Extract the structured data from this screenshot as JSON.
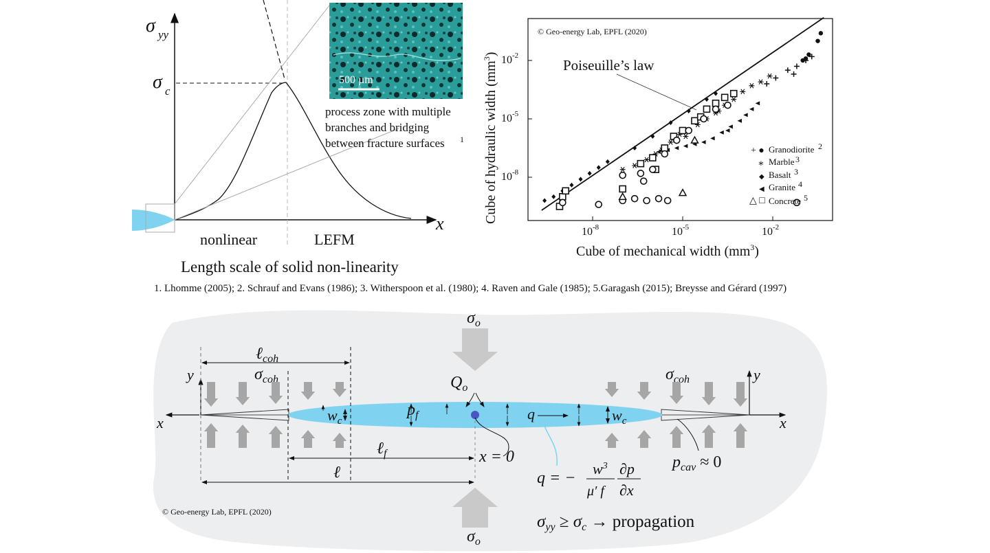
{
  "panel_a": {
    "y_symbol": "σ",
    "y_sub": "yy",
    "c_symbol": "σ",
    "c_sub": "c",
    "x_symbol": "x",
    "label_nonlinear": "nonlinear",
    "label_lefm": "LEFM",
    "caption": "Length scale of solid non-linearity",
    "scale_bar": "500 µm",
    "process_zone_line1": "process zone with multiple",
    "process_zone_line2": "branches and bridging",
    "process_zone_line3": "between fracture surfaces",
    "process_zone_ref": "1"
  },
  "chart": {
    "copyright": "© Geo-energy Lab, EPFL (2020)",
    "annotation": "Poiseuille’s law",
    "ylabel": "Cube of hydraulic width (mm",
    "ylabel_sup": "3",
    "ylabel_end": ")",
    "xlabel": "Cube of mechanical width (mm",
    "xlabel_sup": "3",
    "xlabel_end": ")",
    "yticks": [
      {
        "base": "10",
        "exp": "-2"
      },
      {
        "base": "10",
        "exp": "-5"
      },
      {
        "base": "10",
        "exp": "-8"
      }
    ],
    "xticks": [
      {
        "base": "10",
        "exp": "-8"
      },
      {
        "base": "10",
        "exp": "-5"
      },
      {
        "base": "10",
        "exp": "-2"
      }
    ],
    "legend": [
      {
        "marker": "+ ●",
        "name": "Granodiorite",
        "ref": "2"
      },
      {
        "marker": "∗",
        "name": "Marble",
        "ref": "3"
      },
      {
        "marker": "◆",
        "name": "Basalt",
        "ref": "3"
      },
      {
        "marker": "◀",
        "name": "Granite",
        "ref": "4"
      },
      {
        "marker": "△ □",
        "name": "Concrete",
        "ref": "5"
      }
    ]
  },
  "chart_data": {
    "type": "scatter",
    "log_scale": true,
    "xlim_exp": [
      -10.3,
      -0.2
    ],
    "ylim_exp": [
      -9.7,
      0.3
    ],
    "poiseuille_line": [
      [
        -9.7,
        -9.7
      ],
      [
        -0.3,
        0.2
      ]
    ],
    "series": [
      {
        "name": "Granodiorite",
        "marker": "+",
        "points": [
          [
            -2.2,
            -3.2
          ],
          [
            -1.9,
            -2.9
          ],
          [
            -1.5,
            -2.5
          ],
          [
            -1.2,
            -2.3
          ],
          [
            -0.9,
            -2.0
          ],
          [
            -0.7,
            -1.8
          ],
          [
            -1.3,
            -2.7
          ]
        ]
      },
      {
        "name": "Granodiorite",
        "marker": "dot",
        "points": [
          [
            -1.0,
            -2.0
          ],
          [
            -0.8,
            -1.7
          ],
          [
            -0.5,
            -1.0
          ],
          [
            -0.4,
            -0.6
          ],
          [
            -0.9,
            -1.9
          ]
        ]
      },
      {
        "name": "Marble",
        "marker": "*",
        "points": [
          [
            -7.0,
            -7.6
          ],
          [
            -6.6,
            -7.4
          ],
          [
            -6.2,
            -7.1
          ],
          [
            -5.9,
            -6.8
          ],
          [
            -5.7,
            -6.6
          ],
          [
            -5.4,
            -6.2
          ],
          [
            -5.1,
            -5.8
          ],
          [
            -4.8,
            -5.6
          ],
          [
            -4.5,
            -5.3
          ],
          [
            -4.2,
            -5.0
          ],
          [
            -3.9,
            -4.7
          ],
          [
            -3.6,
            -4.3
          ],
          [
            -3.3,
            -4.0
          ],
          [
            -3.0,
            -3.6
          ],
          [
            -2.7,
            -3.3
          ],
          [
            -2.4,
            -3.1
          ],
          [
            -2.1,
            -2.8
          ],
          [
            -3.8,
            -4.6
          ],
          [
            -4.9,
            -5.9
          ]
        ]
      },
      {
        "name": "Basalt",
        "marker": "diamond",
        "points": [
          [
            -9.6,
            -9.2
          ],
          [
            -9.3,
            -9.0
          ],
          [
            -9.0,
            -8.7
          ],
          [
            -8.7,
            -8.4
          ],
          [
            -8.4,
            -8.1
          ],
          [
            -8.1,
            -7.8
          ],
          [
            -7.8,
            -7.5
          ],
          [
            -7.5,
            -7.2
          ],
          [
            -6.6,
            -6.5
          ],
          [
            -6.0,
            -5.9
          ],
          [
            -5.4,
            -5.2
          ],
          [
            -4.8,
            -4.6
          ],
          [
            -4.2,
            -4.0
          ],
          [
            -3.9,
            -3.7
          ]
        ]
      },
      {
        "name": "Granite",
        "marker": "triangle-left",
        "points": [
          [
            -5.8,
            -6.7
          ],
          [
            -5.5,
            -6.6
          ],
          [
            -5.2,
            -6.5
          ],
          [
            -4.9,
            -6.4
          ],
          [
            -4.6,
            -6.3
          ],
          [
            -4.3,
            -6.2
          ],
          [
            -4.0,
            -6.0
          ],
          [
            -3.7,
            -5.7
          ],
          [
            -3.4,
            -5.4
          ],
          [
            -3.1,
            -5.1
          ],
          [
            -2.9,
            -4.8
          ],
          [
            -2.7,
            -4.5
          ],
          [
            -2.5,
            -4.2
          ],
          [
            -3.5,
            -5.6
          ]
        ]
      },
      {
        "name": "Concrete",
        "marker": "square",
        "points": [
          [
            -9.0,
            -9.0
          ],
          [
            -8.9,
            -8.7
          ],
          [
            -9.1,
            -9.5
          ],
          [
            -7.0,
            -8.6
          ],
          [
            -6.4,
            -7.3
          ],
          [
            -6.0,
            -7.0
          ],
          [
            -5.6,
            -6.5
          ],
          [
            -5.3,
            -5.9
          ],
          [
            -5.0,
            -5.6
          ],
          [
            -4.6,
            -5.1
          ],
          [
            -4.2,
            -4.5
          ],
          [
            -3.9,
            -4.2
          ],
          [
            -3.6,
            -3.9
          ],
          [
            -3.3,
            -3.7
          ],
          [
            -5.9,
            -7.6
          ],
          [
            -4.4,
            -4.9
          ]
        ]
      },
      {
        "name": "Concrete",
        "marker": "circle",
        "points": [
          [
            -9.0,
            -9.3
          ],
          [
            -7.8,
            -9.4
          ],
          [
            -7.0,
            -9.2
          ],
          [
            -6.6,
            -9.1
          ],
          [
            -6.2,
            -9.2
          ],
          [
            -5.8,
            -9.1
          ],
          [
            -5.5,
            -9.2
          ],
          [
            -7.0,
            -7.9
          ],
          [
            -6.4,
            -7.8
          ],
          [
            -6.0,
            -7.6
          ],
          [
            -5.6,
            -6.8
          ],
          [
            -5.2,
            -6.1
          ],
          [
            -4.8,
            -5.6
          ],
          [
            -4.3,
            -5.0
          ],
          [
            -3.9,
            -4.5
          ],
          [
            -3.5,
            -4.3
          ],
          [
            -1.2,
            -9.3
          ],
          [
            -6.3,
            -8.2
          ]
        ]
      },
      {
        "name": "Concrete",
        "marker": "triangle",
        "points": [
          [
            -7.0,
            -9.0
          ],
          [
            -5.0,
            -8.8
          ],
          [
            -4.6,
            -6.1
          ]
        ]
      }
    ]
  },
  "panel_c": {
    "references": "1. Lhomme (2005); 2. Schrauf and Evans (1986); 3. Witherspoon et al. (1980); 4. Raven and Gale (1985); 5.Garagash (2015); Breysse and Gérard (1997)",
    "sigma_o": "σ",
    "sigma_o_sub": "o",
    "l_coh": "ℓ",
    "l_coh_sub": "coh",
    "sigma_coh": "σ",
    "sigma_coh_sub": "coh",
    "y": "y",
    "x": "x",
    "Q": "Q",
    "Q_sub": "o",
    "p_f": "p",
    "p_f_sub": "f",
    "w_c": "w",
    "w_c_sub": "c",
    "q": "q",
    "l_f": "ℓ",
    "l_f_sub": "f",
    "l": "ℓ",
    "x_zero": "x = 0",
    "p_cav": "p",
    "p_cav_sub": "cav",
    "p_cav_tail": " ≈ 0",
    "eq_lhs": "q = −",
    "eq_num": "w",
    "eq_num_sup": "3",
    "eq_den": "μ′ f",
    "eq_dnum": "∂p",
    "eq_dden": "∂x",
    "crit_a": "σ",
    "crit_a_sub": "yy",
    "crit_b": " ≥ ",
    "crit_c": "σ",
    "crit_c_sub": "c",
    "crit_d": " → propagation",
    "copyright": "© Geo-energy Lab, EPFL (2020)"
  },
  "colors": {
    "fluid": "#7fd2f0",
    "blob": "#eceeef",
    "arrow": "#a6a6a6",
    "injection_dot": "#4b55c4",
    "image_teal": "#2ea3a0"
  }
}
